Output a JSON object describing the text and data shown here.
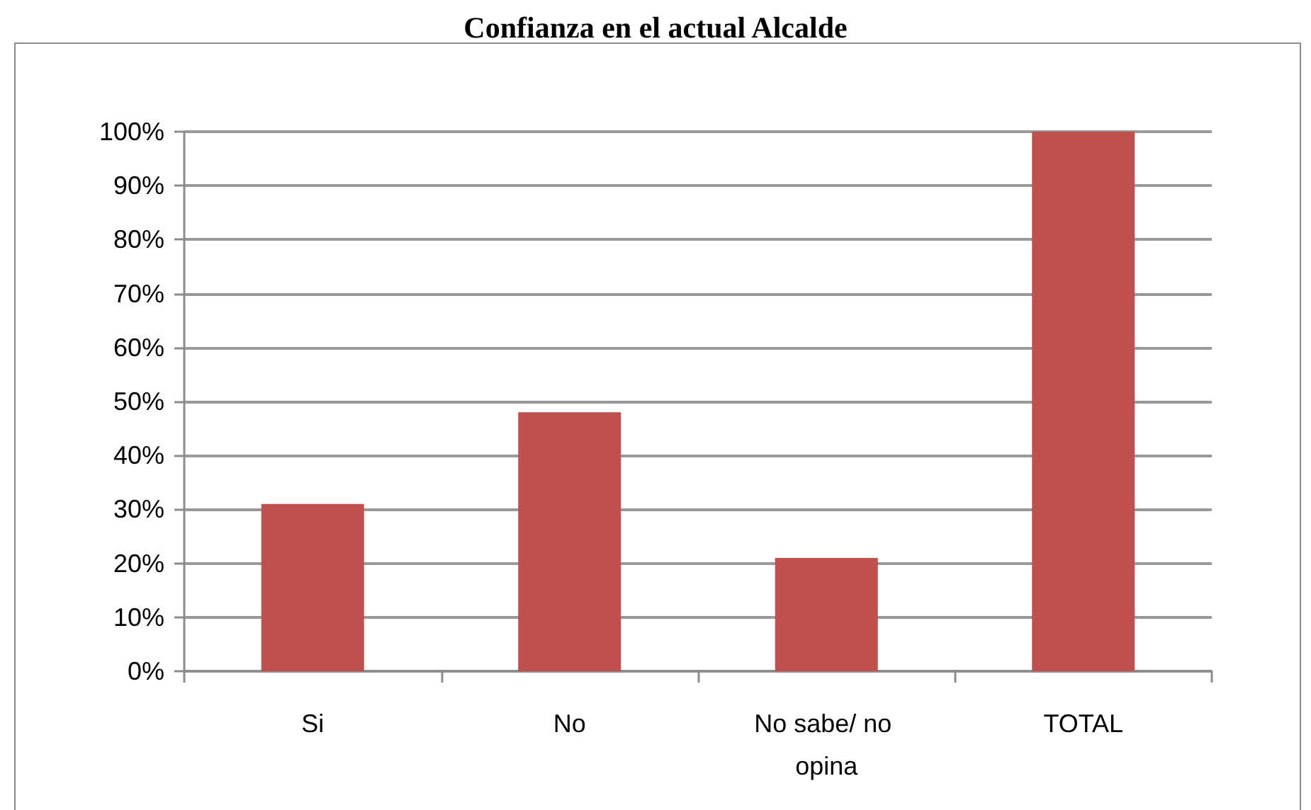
{
  "chart_data": {
    "type": "bar",
    "title": "Confianza en el actual Alcalde",
    "categories": [
      "Si",
      "No",
      "No sabe/ no opina",
      "TOTAL"
    ],
    "values": [
      31,
      48,
      21,
      100
    ],
    "color": "#c0504d",
    "ylim": [
      0,
      100
    ],
    "yticks": [
      {
        "value": 0,
        "label": "0%"
      },
      {
        "value": 10,
        "label": "10%"
      },
      {
        "value": 20,
        "label": "20%"
      },
      {
        "value": 30,
        "label": "30%"
      },
      {
        "value": 40,
        "label": "40%"
      },
      {
        "value": 50,
        "label": "50%"
      },
      {
        "value": 60,
        "label": "60%"
      },
      {
        "value": 70,
        "label": "70%"
      },
      {
        "value": 80,
        "label": "80%"
      },
      {
        "value": 90,
        "label": "90%"
      },
      {
        "value": 100,
        "label": "100%"
      }
    ],
    "grid": "y"
  }
}
